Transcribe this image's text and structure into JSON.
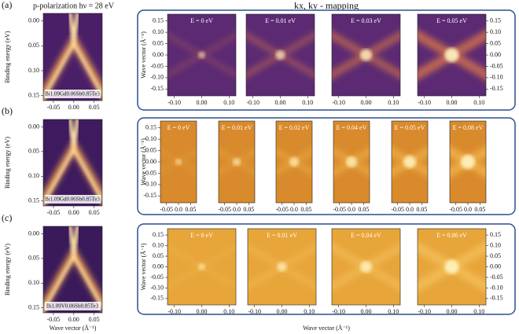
{
  "figure": {
    "header": {
      "polarization": "p-polarization hν = 28 eV",
      "mapping": "kx, ky - mapping"
    },
    "axis_labels": {
      "binding_energy": "Binding energy (eV)",
      "wave_vector": "Wave vector (Å⁻¹)"
    },
    "dispersion": {
      "ylim": [
        -0.015,
        0.16
      ],
      "yticks": [
        {
          "value": 0,
          "label": "0.00"
        },
        0.05,
        {
          "value": 0.1,
          "label": "0.10"
        },
        0.15
      ],
      "xlim": [
        -0.075,
        0.07
      ],
      "xticks": [
        -0.05,
        {
          "value": 0,
          "label": "0.00"
        },
        0.05
      ]
    },
    "map_ylim": [
      -0.18,
      0.18
    ],
    "map_yticks": [
      0.15,
      {
        "value": 0.1,
        "label": "0.10"
      },
      0.05,
      {
        "value": 0,
        "label": "0.00"
      },
      -0.05,
      {
        "value": -0.1,
        "label": "-0.10"
      },
      -0.15
    ],
    "rows": [
      {
        "label": "(a)",
        "sample": "Bi1.09Gd0.06Sb0.85Te3",
        "energies": [
          "E = 0 eV",
          "E = 0.01 eV",
          "E = 0.03 eV",
          "E = 0.05 eV"
        ],
        "map_xlim": [
          -0.125,
          0.125
        ],
        "map_xticks": [
          {
            "value": -0.1,
            "label": "-0.10"
          },
          {
            "value": 0,
            "label": "0.00"
          },
          {
            "value": 0.1,
            "label": "0.10"
          }
        ]
      },
      {
        "label": "(b)",
        "sample": "Bi1.09Gd0.06Sb0.85Te3",
        "energies": [
          "E = 0 eV",
          "E = 0.01 eV",
          "E = 0.02 eV",
          "E = 0.04 eV",
          "E = 0.05 eV",
          "E = 0.08 eV"
        ],
        "map_xlim": [
          -0.075,
          0.075
        ],
        "map_xticks": [
          -0.05,
          {
            "value": 0,
            "label": "0.0"
          },
          0.05
        ]
      },
      {
        "label": "(c)",
        "sample": "Bi1.09V0.06Sb0.85Te3",
        "energies": [
          "E = 0 eV",
          "E = 0.01 eV",
          "E = 0.04 eV",
          "E = 0.06 eV"
        ],
        "map_xlim": [
          -0.125,
          0.125
        ],
        "map_xticks": [
          {
            "value": -0.1,
            "label": "-0.10"
          },
          {
            "value": 0,
            "label": "0.00"
          },
          {
            "value": 0.1,
            "label": "0.10"
          }
        ]
      }
    ]
  }
}
